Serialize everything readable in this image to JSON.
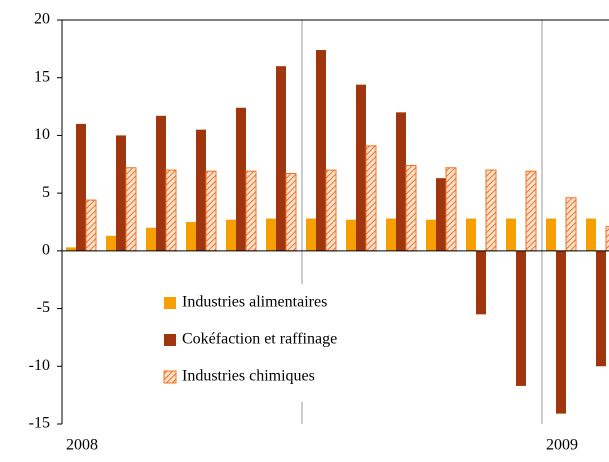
{
  "chart_data": {
    "type": "bar",
    "categories": [
      "2008",
      null,
      null,
      null,
      null,
      null,
      null,
      null,
      null,
      null,
      null,
      null,
      "2009",
      null
    ],
    "series": [
      {
        "name": "Industries alimentaires",
        "color": "#f5a000",
        "values": [
          0.3,
          1.3,
          2.0,
          2.5,
          2.7,
          2.8,
          2.8,
          2.7,
          2.8,
          2.7,
          2.8,
          2.8,
          2.8,
          2.8
        ]
      },
      {
        "name": "Cokéfaction et raffinage",
        "color": "#a0360f",
        "values": [
          11,
          10,
          11.7,
          10.5,
          12.4,
          16,
          17.4,
          14.4,
          12,
          6.3,
          -5.5,
          -11.7,
          -14.1,
          -10
        ]
      },
      {
        "name": "Industries chimiques",
        "color": "#f07020",
        "pattern": "hatch",
        "values": [
          4.4,
          7.2,
          7.0,
          6.9,
          6.9,
          6.7,
          7.0,
          9.1,
          7.4,
          7.2,
          7.0,
          6.9,
          4.6,
          2.1
        ]
      }
    ],
    "ylim": [
      -15,
      20
    ],
    "yticks": [
      -15,
      -10,
      -5,
      0,
      5,
      10,
      15,
      20
    ]
  }
}
